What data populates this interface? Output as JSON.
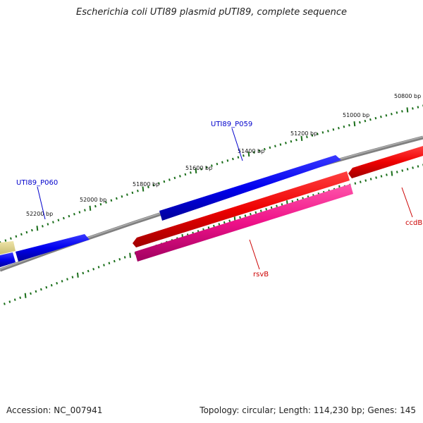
{
  "title": "Escherichia coli UTI89 plasmid pUTI89, complete sequence",
  "colors": {
    "backbone": "#808080",
    "tick": "#1a6e1a",
    "forward_gene": "#0000ee",
    "reverse_gene": "#ee0000",
    "reverse_gene_alt": "#ee1188",
    "other_gene": "#d8cc80",
    "label_blue": "#0000cc",
    "label_red": "#cc0000"
  },
  "scale": {
    "positions": [
      50800,
      51000,
      51200,
      51400,
      51600,
      51800,
      52000,
      52200
    ],
    "unit": "bp"
  },
  "genes": [
    {
      "name": "UTI89_P059",
      "strand": "forward",
      "color": "#0000ee",
      "label_color": "#0000cc"
    },
    {
      "name": "UTI89_P060",
      "strand": "forward",
      "color": "#0000ee",
      "label_color": "#0000cc"
    },
    {
      "name": "rsvB",
      "strand": "reverse",
      "color": "#ee1188",
      "label_color": "#cc0000"
    },
    {
      "name": "ccdB",
      "strand": "reverse",
      "color": "#ee0000",
      "label_color": "#cc0000"
    }
  ],
  "footer": {
    "accession": "Accession: NC_007941",
    "summary": "Topology: circular; Length: 114,230 bp; Genes: 145"
  }
}
